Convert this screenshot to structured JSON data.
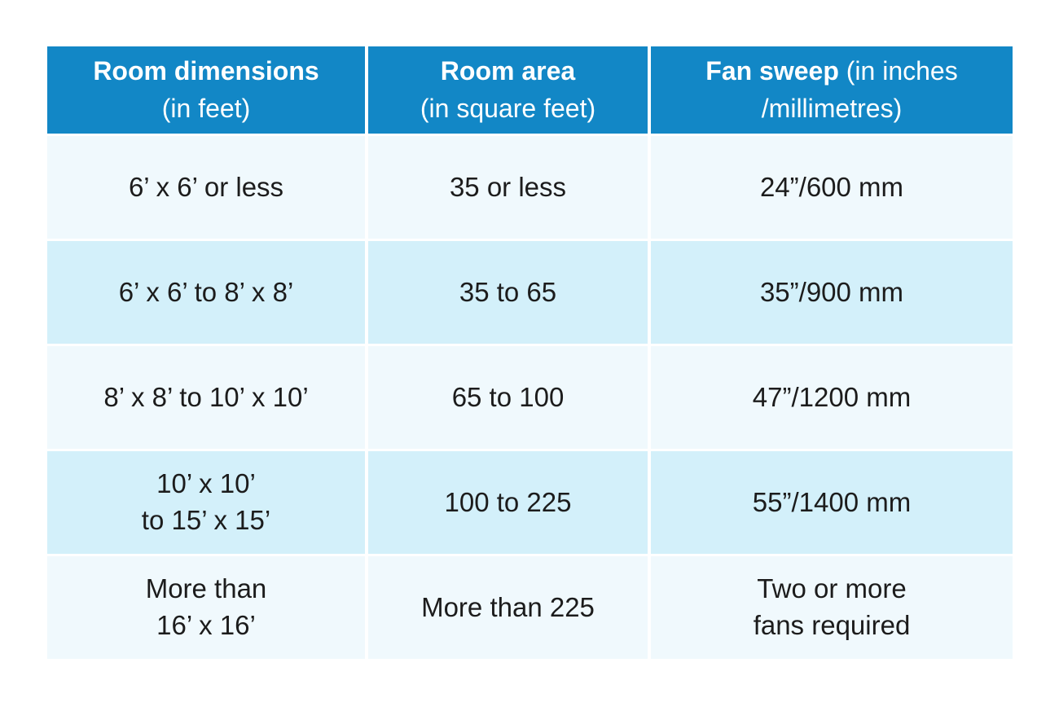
{
  "colors": {
    "page_bg": "#ffffff",
    "header_bg": "#1287c6",
    "header_text": "#ffffff",
    "row_light": "#f0f9fd",
    "row_dark": "#d3f0fa",
    "body_text": "#1c1c1c",
    "gap": "#ffffff"
  },
  "table": {
    "headers": [
      {
        "bold": "Room dimensions",
        "normal": "\n(in feet)"
      },
      {
        "bold": "Room area",
        "normal": "\n(in square feet)"
      },
      {
        "bold": "Fan sweep",
        "normal": " (in inches\n/millimetres)"
      }
    ],
    "rows": [
      [
        "6’ x 6’ or less",
        "35 or less",
        "24”/600 mm"
      ],
      [
        "6’ x 6’ to 8’ x 8’",
        "35 to 65",
        "35”/900 mm"
      ],
      [
        "8’ x 8’ to 10’ x 10’",
        "65 to 100",
        "47”/1200 mm"
      ],
      [
        "10’ x 10’\nto 15’ x 15’",
        "100 to 225",
        "55”/1400 mm"
      ],
      [
        "More than\n16’ x 16’",
        "More than 225",
        "Two or more\nfans required"
      ]
    ]
  }
}
